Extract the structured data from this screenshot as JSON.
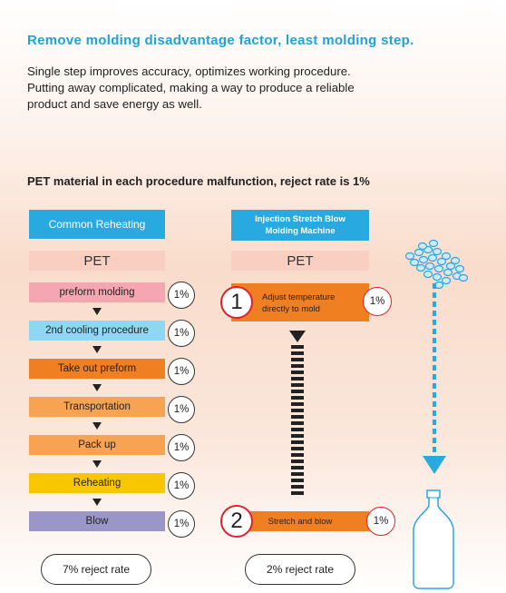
{
  "headline": "Remove molding disadvantage factor, least molding step.",
  "intro": [
    "Single step improves accuracy, optimizes working procedure.",
    "Putting away complicated, making a way to produce a reliable",
    "product and save energy as well."
  ],
  "subhead": "PET material in each procedure malfunction, reject rate is 1%",
  "left": {
    "header": "Common Reheating",
    "pet": "PET",
    "steps": [
      {
        "label": "preform molding",
        "rate": "1%",
        "color": "#f4a6b1"
      },
      {
        "label": "2nd cooling procedure",
        "rate": "1%",
        "color": "#8fd8f3"
      },
      {
        "label": "Take out preform",
        "rate": "1%",
        "color": "#f07f22"
      },
      {
        "label": "Transportation",
        "rate": "1%",
        "color": "#f7a352"
      },
      {
        "label": "Pack up",
        "rate": "1%",
        "color": "#f7a352"
      },
      {
        "label": "Reheating",
        "rate": "1%",
        "color": "#f9c700"
      },
      {
        "label": "Blow",
        "rate": "1%",
        "color": "#9b96c8"
      }
    ],
    "total": "7% reject rate"
  },
  "right": {
    "header_line1": "Injection Stretch Blow",
    "header_line2": "Molding Machine",
    "pet": "PET",
    "step1_num": "1",
    "step1_line1": "Adjust temperature",
    "step1_line2": "directly to mold",
    "step1_rate": "1%",
    "step2_num": "2",
    "step2_label": "Stretch and blow",
    "step2_rate": "1%",
    "total": "2% reject rate",
    "accent": "#f07f22"
  }
}
